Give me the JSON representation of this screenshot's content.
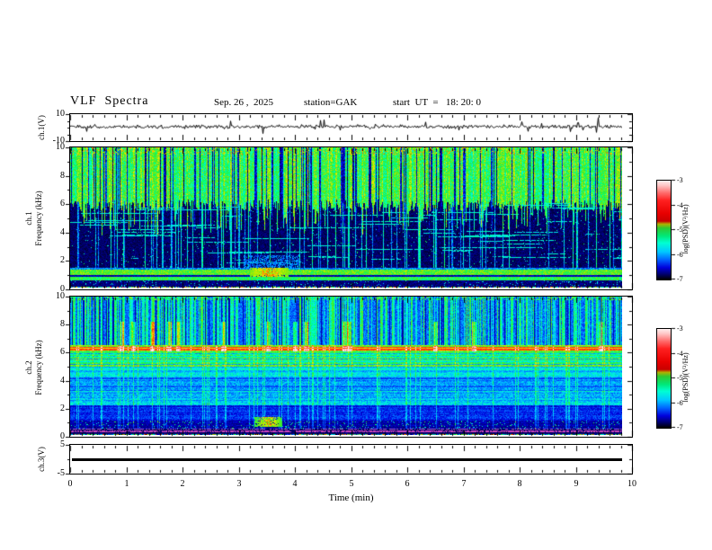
{
  "header": {
    "title": "VLF  Spectra",
    "date": "Sep. 26 ,  2025",
    "station": "station=GAK",
    "start_ut": "start  UT  =   18: 20: 0"
  },
  "chart_data": {
    "type": "heatmap",
    "title": "VLF Spectra",
    "x": {
      "label": "Time  (min)",
      "range": [
        0,
        10
      ],
      "major_ticks": [
        0,
        1,
        2,
        3,
        4,
        5,
        6,
        7,
        8,
        9,
        10
      ],
      "minor_step": 0.2,
      "data_end_min": 9.8
    },
    "panels": [
      {
        "id": "ch1_voltage",
        "type": "line",
        "ylabel": "ch.1(V)",
        "ylim": [
          -10,
          10
        ],
        "yticks": [
          10,
          -10
        ],
        "signal": "broadband noise of ~±1 V about 0 V with sparse impulsive spikes reaching ±8 V"
      },
      {
        "id": "ch1_spectrogram",
        "type": "heatmap",
        "ylabel_lines": [
          "ch.1",
          "Frequency (kHz)"
        ],
        "ylim": [
          0,
          10
        ],
        "yticks": [
          0,
          2,
          4,
          6,
          8,
          10
        ],
        "yticks_minor": [
          1,
          3,
          5,
          7,
          9
        ],
        "features": [
          "bright green broadband emission 6-10 kHz with dense vertical sferic streaks",
          "dark (~1e-7 V^2/Hz) background 1.5-6 kHz crossed by thin cyan impulse columns and short horizontal cyan dashes",
          "bright green/yellow horizontal band near 0.6-1.3 kHz",
          "orange enhancement near 3.5 min at ~1 kHz",
          "multicolor speckle row at the 0 kHz edge"
        ]
      },
      {
        "id": "ch2_spectrogram",
        "type": "heatmap",
        "ylabel_lines": [
          "ch.2",
          "Frequency (kHz)"
        ],
        "ylim": [
          0,
          10
        ],
        "yticks": [
          0,
          2,
          4,
          6,
          8,
          10
        ],
        "yticks_minor": [
          1,
          3,
          5,
          7,
          9
        ],
        "features": [
          "mottled cyan/blue background with vertical green streaks and dark navy gaps above 6.5 kHz",
          "intense red/orange horizontal line at ~6.3 kHz with recurring red blobs",
          "dashed green band 5-6 kHz",
          "darker blue region 1-2.5 kHz",
          "magenta interference lines below 0.5 kHz",
          "orange enhancement near 3.5 min at ~0.9 kHz"
        ]
      },
      {
        "id": "ch3_voltage",
        "type": "line",
        "ylabel": "ch.3(V)",
        "ylim": [
          -5,
          5
        ],
        "yticks": [
          5,
          -5
        ],
        "signal": "constant thick trace at 0 V"
      }
    ],
    "colorbars": [
      {
        "label": "log(PSD)(V²/Hz)",
        "range": [
          -7,
          -3
        ],
        "ticks": [
          -3,
          -4,
          -5,
          -6,
          -7
        ]
      },
      {
        "label": "log(PSD)(V²/Hz)",
        "range": [
          -7,
          -3
        ],
        "ticks": [
          -3,
          -4,
          -5,
          -6,
          -7
        ]
      }
    ],
    "colors": {
      "frame": "#000000",
      "background": "#ffffff"
    },
    "legend_position": "right colorbars"
  }
}
